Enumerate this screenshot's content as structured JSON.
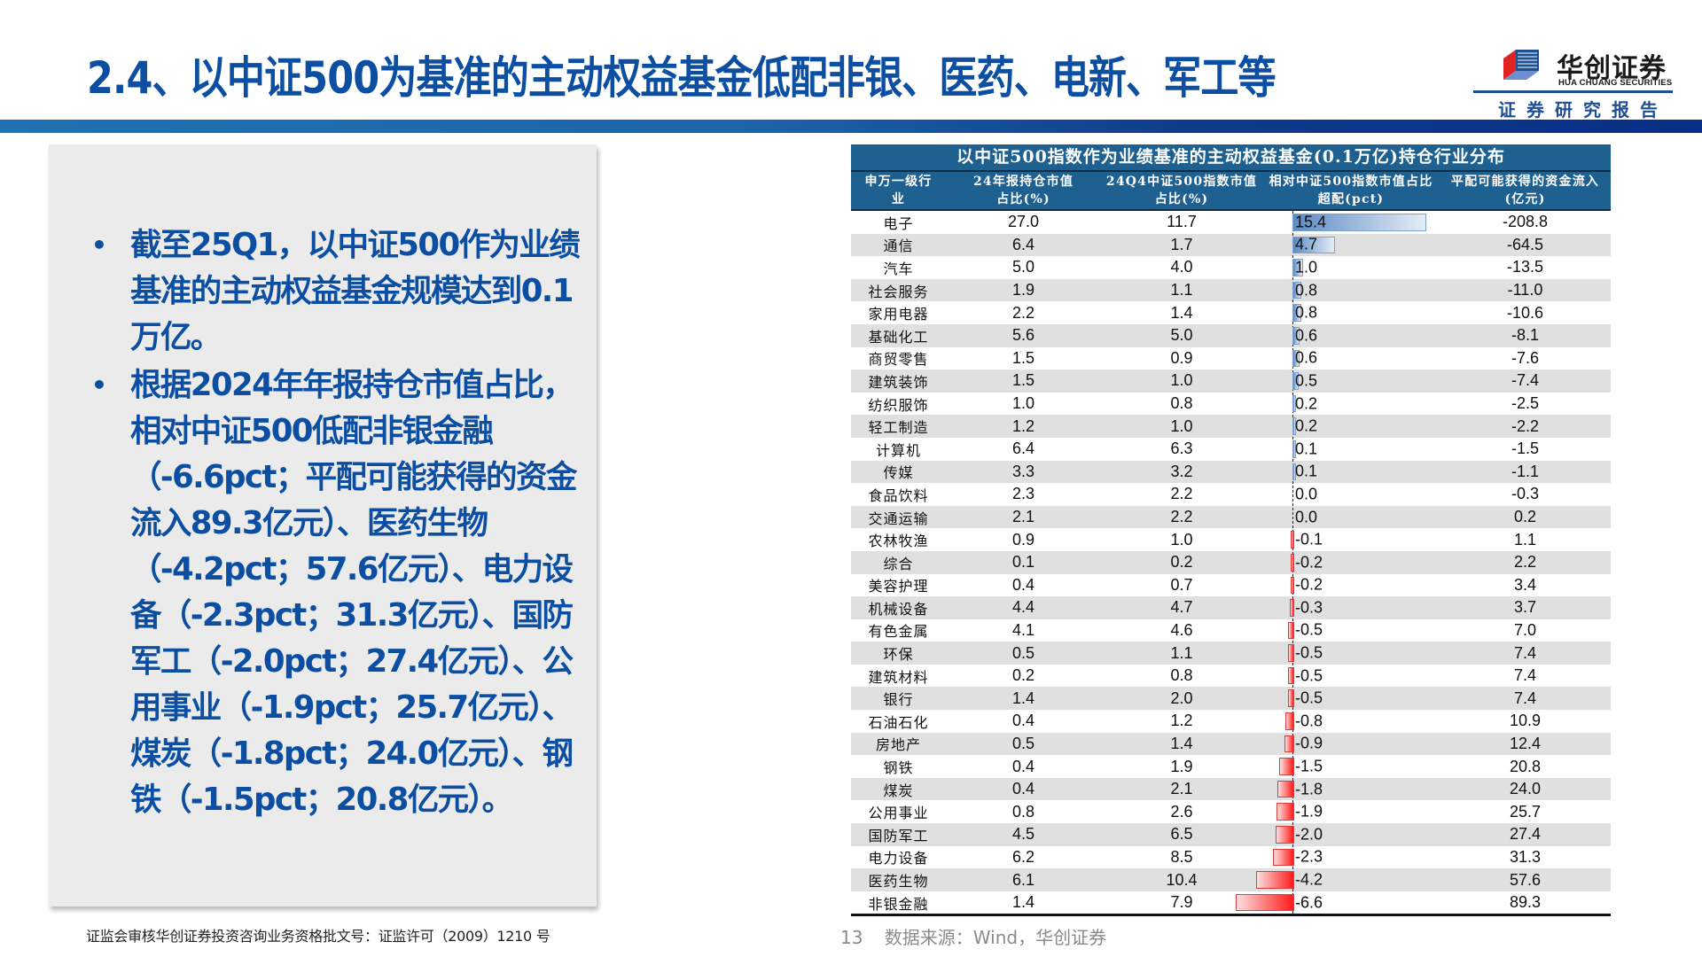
{
  "header": {
    "title": "2.4、以中证500为基准的主动权益基金低配非银、医药、电新、军工等",
    "logo_cn": "华创证券",
    "logo_en": "HUA CHUANG SECURITIES",
    "report_label": "证券研究报告",
    "colors": {
      "title": "#0b4ea2",
      "band": "#0a2f86",
      "logo_red": "#e02424",
      "logo_blue": "#1e4f93"
    }
  },
  "panel": {
    "bullets": [
      "截至25Q1，以中证500作为业绩基准的主动权益基金规模达到0.1万亿。",
      "根据2024年年报持仓市值占比，相对中证500低配非银金融（-6.6pct；平配可能获得的资金流入89.3亿元）、医药生物（-4.2pct；57.6亿元）、电力设备（-2.3pct；31.3亿元）、国防军工（-2.0pct；27.4亿元）、公用事业（-1.9pct；25.7亿元）、煤炭（-1.8pct；24.0亿元）、钢铁（-1.5pct；20.8亿元）。"
    ]
  },
  "table": {
    "title": "以中证500指数作为业绩基准的主动权益基金(0.1万亿)持仓行业分布",
    "columns": [
      "申万一级行业",
      "24年报持仓市值占比(%)",
      "24Q4中证500指数市值占比(%)",
      "相对中证500指数市值占比超配(pct)",
      "平配可能获得的资金流入(亿元)"
    ],
    "column_lines": [
      [
        "申万一级行",
        "业"
      ],
      [
        "24年报持仓市值",
        "占比(%)"
      ],
      [
        "24Q4中证500指数市值",
        "占比(%)"
      ],
      [
        "相对中证500指数市值占比",
        "超配(pct)"
      ],
      [
        "平配可能获得的资金流入",
        "(亿元)"
      ]
    ],
    "colors": {
      "header_bg": "#1e6190",
      "alt_row": "#e0e0e0",
      "bar_pos": "#5c8ac4",
      "bar_neg": "#ff1a1a"
    },
    "rows": [
      [
        "电子",
        "27.0",
        "11.7",
        "15.4",
        "-208.8"
      ],
      [
        "通信",
        "6.4",
        "1.7",
        "4.7",
        "-64.5"
      ],
      [
        "汽车",
        "5.0",
        "4.0",
        "1.0",
        "-13.5"
      ],
      [
        "社会服务",
        "1.9",
        "1.1",
        "0.8",
        "-11.0"
      ],
      [
        "家用电器",
        "2.2",
        "1.4",
        "0.8",
        "-10.6"
      ],
      [
        "基础化工",
        "5.6",
        "5.0",
        "0.6",
        "-8.1"
      ],
      [
        "商贸零售",
        "1.5",
        "0.9",
        "0.6",
        "-7.6"
      ],
      [
        "建筑装饰",
        "1.5",
        "1.0",
        "0.5",
        "-7.4"
      ],
      [
        "纺织服饰",
        "1.0",
        "0.8",
        "0.2",
        "-2.5"
      ],
      [
        "轻工制造",
        "1.2",
        "1.0",
        "0.2",
        "-2.2"
      ],
      [
        "计算机",
        "6.4",
        "6.3",
        "0.1",
        "-1.5"
      ],
      [
        "传媒",
        "3.3",
        "3.2",
        "0.1",
        "-1.1"
      ],
      [
        "食品饮料",
        "2.3",
        "2.2",
        "0.0",
        "-0.3"
      ],
      [
        "交通运输",
        "2.1",
        "2.2",
        "0.0",
        "0.2"
      ],
      [
        "农林牧渔",
        "0.9",
        "1.0",
        "-0.1",
        "1.1"
      ],
      [
        "综合",
        "0.1",
        "0.2",
        "-0.2",
        "2.2"
      ],
      [
        "美容护理",
        "0.4",
        "0.7",
        "-0.2",
        "3.4"
      ],
      [
        "机械设备",
        "4.4",
        "4.7",
        "-0.3",
        "3.7"
      ],
      [
        "有色金属",
        "4.1",
        "4.6",
        "-0.5",
        "7.0"
      ],
      [
        "环保",
        "0.5",
        "1.1",
        "-0.5",
        "7.4"
      ],
      [
        "建筑材料",
        "0.2",
        "0.8",
        "-0.5",
        "7.4"
      ],
      [
        "银行",
        "1.4",
        "2.0",
        "-0.5",
        "7.4"
      ],
      [
        "石油石化",
        "0.4",
        "1.2",
        "-0.8",
        "10.9"
      ],
      [
        "房地产",
        "0.5",
        "1.4",
        "-0.9",
        "12.4"
      ],
      [
        "钢铁",
        "0.4",
        "1.9",
        "-1.5",
        "20.8"
      ],
      [
        "煤炭",
        "0.4",
        "2.1",
        "-1.8",
        "24.0"
      ],
      [
        "公用事业",
        "0.8",
        "2.6",
        "-1.9",
        "25.7"
      ],
      [
        "国防军工",
        "4.5",
        "6.5",
        "-2.0",
        "27.4"
      ],
      [
        "电力设备",
        "6.2",
        "8.5",
        "-2.3",
        "31.3"
      ],
      [
        "医药生物",
        "6.1",
        "10.4",
        "-4.2",
        "57.6"
      ],
      [
        "非银金融",
        "1.4",
        "7.9",
        "-6.6",
        "89.3"
      ]
    ]
  },
  "chart_data": {
    "type": "table",
    "title": "以中证500指数作为业绩基准的主动权益基金(0.1万亿)持仓行业分布",
    "columns": [
      "申万一级行业",
      "24年报持仓市值占比(%)",
      "24Q4中证500指数市值占比(%)",
      "相对中证500指数市值占比超配(pct)",
      "平配可能获得的资金流入(亿元)"
    ],
    "categories": [
      "电子",
      "通信",
      "汽车",
      "社会服务",
      "家用电器",
      "基础化工",
      "商贸零售",
      "建筑装饰",
      "纺织服饰",
      "轻工制造",
      "计算机",
      "传媒",
      "食品饮料",
      "交通运输",
      "农林牧渔",
      "综合",
      "美容护理",
      "机械设备",
      "有色金属",
      "环保",
      "建筑材料",
      "银行",
      "石油石化",
      "房地产",
      "钢铁",
      "煤炭",
      "公用事业",
      "国防军工",
      "电力设备",
      "医药生物",
      "非银金融"
    ],
    "series": [
      {
        "name": "24年报持仓市值占比(%)",
        "values": [
          27.0,
          6.4,
          5.0,
          1.9,
          2.2,
          5.6,
          1.5,
          1.5,
          1.0,
          1.2,
          6.4,
          3.3,
          2.3,
          2.1,
          0.9,
          0.1,
          0.4,
          4.4,
          4.1,
          0.5,
          0.2,
          1.4,
          0.4,
          0.5,
          0.4,
          0.4,
          0.8,
          4.5,
          6.2,
          6.1,
          1.4
        ]
      },
      {
        "name": "24Q4中证500指数市值占比(%)",
        "values": [
          11.7,
          1.7,
          4.0,
          1.1,
          1.4,
          5.0,
          0.9,
          1.0,
          0.8,
          1.0,
          6.3,
          3.2,
          2.2,
          2.2,
          1.0,
          0.2,
          0.7,
          4.7,
          4.6,
          1.1,
          0.8,
          2.0,
          1.2,
          1.4,
          1.9,
          2.1,
          2.6,
          6.5,
          8.5,
          10.4,
          7.9
        ]
      },
      {
        "name": "相对中证500指数市值占比超配(pct)",
        "values": [
          15.4,
          4.7,
          1.0,
          0.8,
          0.8,
          0.6,
          0.6,
          0.5,
          0.2,
          0.2,
          0.1,
          0.1,
          0.0,
          0.0,
          -0.1,
          -0.2,
          -0.2,
          -0.3,
          -0.5,
          -0.5,
          -0.5,
          -0.5,
          -0.8,
          -0.9,
          -1.5,
          -1.8,
          -1.9,
          -2.0,
          -2.3,
          -4.2,
          -6.6
        ],
        "rendered_as": "data bars"
      },
      {
        "name": "平配可能获得的资金流入(亿元)",
        "values": [
          -208.8,
          -64.5,
          -13.5,
          -11.0,
          -10.6,
          -8.1,
          -7.6,
          -7.4,
          -2.5,
          -2.2,
          -1.5,
          -1.1,
          -0.3,
          0.2,
          1.1,
          2.2,
          3.4,
          3.7,
          7.0,
          7.4,
          7.4,
          7.4,
          10.9,
          12.4,
          20.8,
          24.0,
          25.7,
          27.4,
          31.3,
          57.6,
          89.3
        ]
      }
    ]
  },
  "footer": {
    "license": "证监会审核华创证券投资咨询业务资格批文号：证监许可（2009）1210 号",
    "page_number": "13",
    "source": "数据来源：Wind，华创证券"
  }
}
